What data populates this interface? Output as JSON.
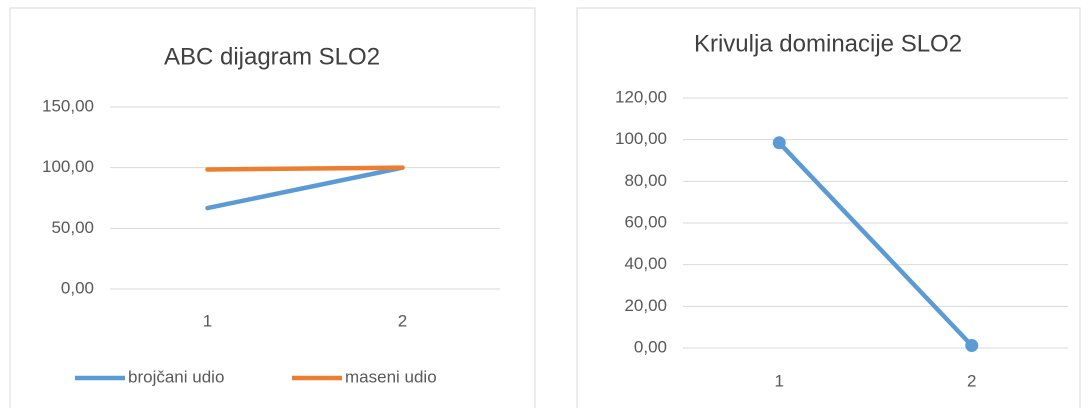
{
  "chart_data": [
    {
      "type": "line",
      "title": "ABC dijagram SLO2",
      "categories": [
        "1",
        "2"
      ],
      "series": [
        {
          "name": "brojčani udio",
          "color": "#5b9bd5",
          "values": [
            66.67,
            100
          ]
        },
        {
          "name": "maseni udio",
          "color": "#ed7d31",
          "values": [
            98.5,
            100
          ]
        }
      ],
      "ylim": [
        0,
        150
      ],
      "yticks": [
        {
          "value": 0,
          "label": "0,00"
        },
        {
          "value": 50,
          "label": "50,00"
        },
        {
          "value": 100,
          "label": "100,00"
        },
        {
          "value": 150,
          "label": "150,00"
        }
      ],
      "grid": true,
      "legend": "bottom",
      "markers": false
    },
    {
      "type": "line",
      "title": "Krivulja dominacije SLO2",
      "categories": [
        "1",
        "2"
      ],
      "series": [
        {
          "color": "#5b9bd5",
          "values": [
            98.5,
            1.2
          ]
        }
      ],
      "ylim": [
        0,
        120
      ],
      "yticks": [
        {
          "value": 0,
          "label": "0,00"
        },
        {
          "value": 20,
          "label": "20,00"
        },
        {
          "value": 40,
          "label": "40,00"
        },
        {
          "value": 60,
          "label": "60,00"
        },
        {
          "value": 80,
          "label": "80,00"
        },
        {
          "value": 100,
          "label": "100,00"
        },
        {
          "value": 120,
          "label": "120,00"
        }
      ],
      "grid": true,
      "markers": true
    }
  ]
}
